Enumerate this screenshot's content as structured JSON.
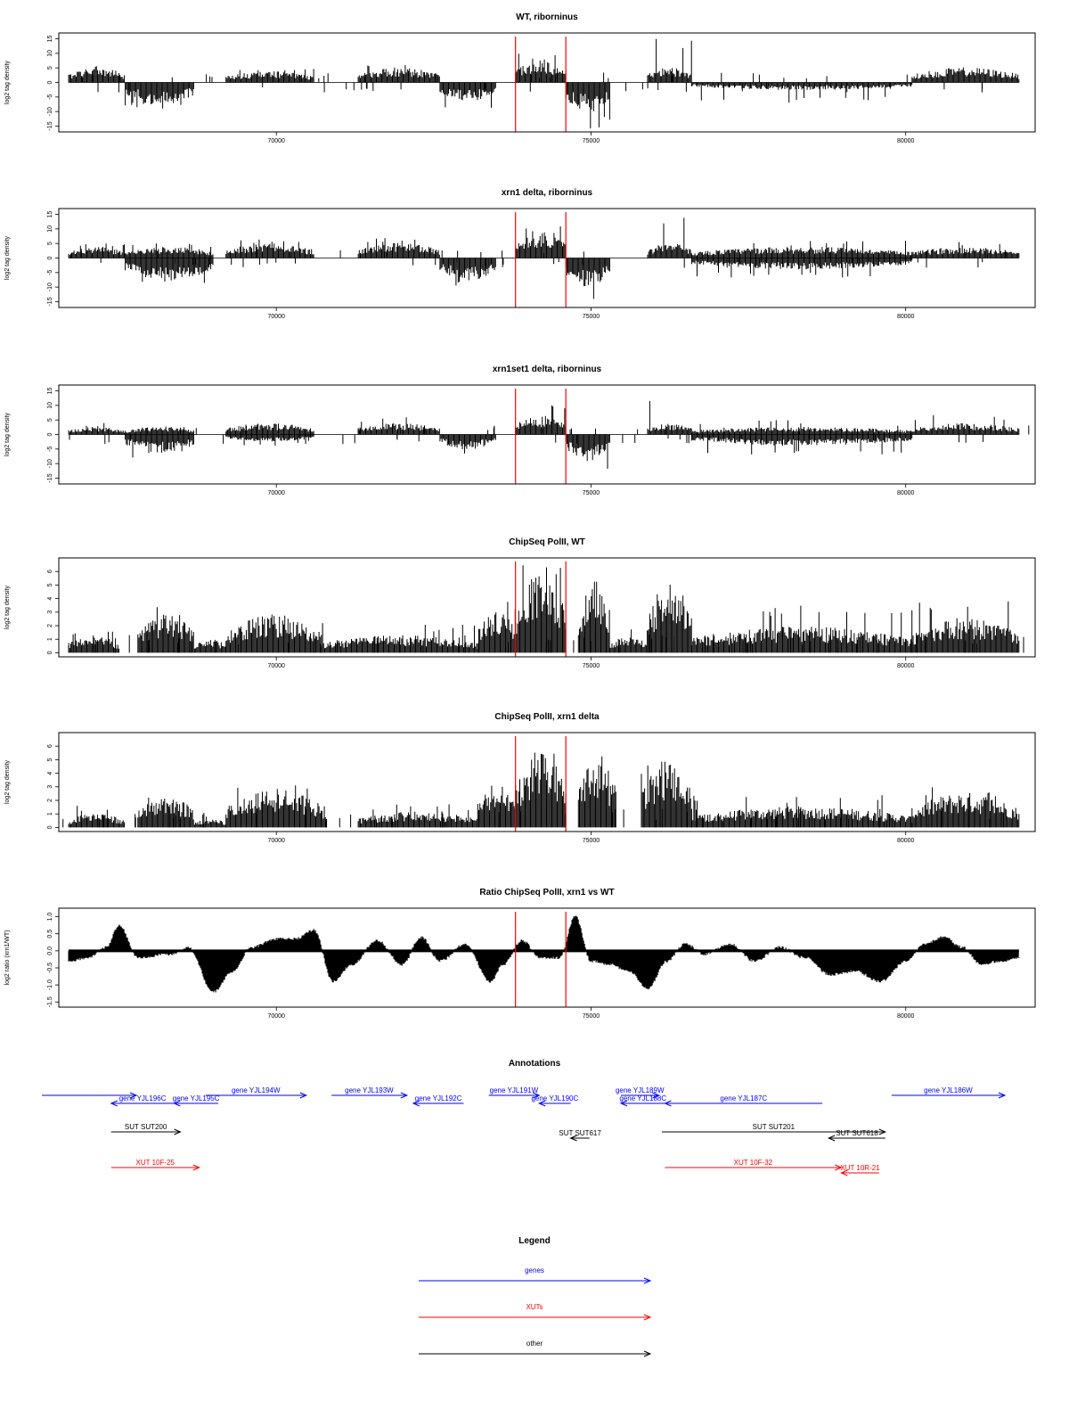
{
  "chart_data": [
    {
      "type": "bar",
      "title": "WT, riborninus",
      "ylabel": "log2 tag density",
      "x_ticks": [
        70000,
        75000,
        80000
      ],
      "y_ticks": [
        -15,
        -10,
        -5,
        0,
        5,
        10,
        15
      ],
      "y_tick_labels": [
        "-15",
        "-10",
        "-5",
        "0",
        "5",
        "10",
        "15"
      ],
      "xlim": [
        66600,
        82000
      ],
      "ylim": [
        -17,
        17
      ],
      "red_lines_x": [
        73800,
        74600
      ],
      "segments": [
        {
          "x0": 66700,
          "x1": 67600,
          "amp": 4,
          "hi": 6
        },
        {
          "x0": 67600,
          "x1": 68700,
          "amp": -6,
          "hi": -9
        },
        {
          "x0": 69200,
          "x1": 70600,
          "amp": 3,
          "hi": 5
        },
        {
          "x0": 71300,
          "x1": 72600,
          "amp": 4,
          "hi": 7
        },
        {
          "x0": 72600,
          "x1": 73500,
          "amp": -5,
          "hi": -9
        },
        {
          "x0": 73800,
          "x1": 74600,
          "amp": 6,
          "hi": 11
        },
        {
          "x0": 74600,
          "x1": 75300,
          "amp": -8,
          "hi": -16
        },
        {
          "x0": 75900,
          "x1": 76600,
          "amp": 4,
          "hi": 15
        },
        {
          "x0": 76600,
          "x1": 80100,
          "amp": -2,
          "hi": -7
        },
        {
          "x0": 80100,
          "x1": 81800,
          "amp": 4,
          "hi": 7
        }
      ]
    },
    {
      "type": "bar",
      "title": "xrn1 delta, riborninus",
      "ylabel": "log2 tag density",
      "x_ticks": [
        70000,
        75000,
        80000
      ],
      "y_ticks": [
        -15,
        -10,
        -5,
        0,
        5,
        10,
        15
      ],
      "y_tick_labels": [
        "-15",
        "-10",
        "-5",
        "0",
        "5",
        "10",
        "15"
      ],
      "xlim": [
        66600,
        82000
      ],
      "ylim": [
        -17,
        17
      ],
      "red_lines_x": [
        73800,
        74600
      ],
      "segments": [
        {
          "x0": 66700,
          "x1": 67600,
          "amp": 3,
          "hi": 5
        },
        {
          "x0": 67600,
          "x1": 69000,
          "amp": -6,
          "hi": -9
        },
        {
          "x0": 67600,
          "x1": 69000,
          "amp": 3,
          "hi": 5
        },
        {
          "x0": 69200,
          "x1": 70600,
          "amp": 4,
          "hi": 7
        },
        {
          "x0": 71300,
          "x1": 72600,
          "amp": 4,
          "hi": 7
        },
        {
          "x0": 72600,
          "x1": 73500,
          "amp": -6,
          "hi": -10
        },
        {
          "x0": 73800,
          "x1": 74600,
          "amp": 7,
          "hi": 11
        },
        {
          "x0": 74600,
          "x1": 75300,
          "amp": -8,
          "hi": -16
        },
        {
          "x0": 75900,
          "x1": 76600,
          "amp": 4,
          "hi": 15
        },
        {
          "x0": 76600,
          "x1": 80100,
          "amp": 3,
          "hi": 6
        },
        {
          "x0": 76600,
          "x1": 80100,
          "amp": -3,
          "hi": -7
        },
        {
          "x0": 80100,
          "x1": 81800,
          "amp": 3,
          "hi": 6
        }
      ]
    },
    {
      "type": "bar",
      "title": "xrn1set1 delta, riborninus",
      "ylabel": "log2 tag density",
      "x_ticks": [
        70000,
        75000,
        80000
      ],
      "y_ticks": [
        -15,
        -10,
        -5,
        0,
        5,
        10,
        15
      ],
      "y_tick_labels": [
        "-15",
        "-10",
        "-5",
        "0",
        "5",
        "10",
        "15"
      ],
      "xlim": [
        66600,
        82000
      ],
      "ylim": [
        -17,
        17
      ],
      "red_lines_x": [
        73800,
        74600
      ],
      "segments": [
        {
          "x0": 66700,
          "x1": 67600,
          "amp": 2,
          "hi": 5
        },
        {
          "x0": 67600,
          "x1": 68700,
          "amp": -5,
          "hi": -8
        },
        {
          "x0": 67600,
          "x1": 68700,
          "amp": 2,
          "hi": 3
        },
        {
          "x0": 69200,
          "x1": 70600,
          "amp": 3,
          "hi": 7
        },
        {
          "x0": 69200,
          "x1": 70600,
          "amp": -2,
          "hi": -4
        },
        {
          "x0": 71300,
          "x1": 72600,
          "amp": 3,
          "hi": 6
        },
        {
          "x0": 72600,
          "x1": 73500,
          "amp": -4,
          "hi": -9
        },
        {
          "x0": 73800,
          "x1": 74600,
          "amp": 5,
          "hi": 11
        },
        {
          "x0": 74600,
          "x1": 75300,
          "amp": -7,
          "hi": -13
        },
        {
          "x0": 75900,
          "x1": 76600,
          "amp": 3,
          "hi": 12
        },
        {
          "x0": 76600,
          "x1": 80100,
          "amp": -3,
          "hi": -7
        },
        {
          "x0": 76600,
          "x1": 80100,
          "amp": 2,
          "hi": 5
        },
        {
          "x0": 80100,
          "x1": 81800,
          "amp": 3,
          "hi": 7
        }
      ]
    },
    {
      "type": "bar",
      "title": "ChipSeq PolII, WT",
      "ylabel": "log2 tag density",
      "x_ticks": [
        70000,
        75000,
        80000
      ],
      "y_ticks": [
        0,
        1,
        2,
        3,
        4,
        5,
        6
      ],
      "y_tick_labels": [
        "0",
        "1",
        "2",
        "3",
        "4",
        "5",
        "6"
      ],
      "xlim": [
        66600,
        82000
      ],
      "ylim": [
        -0.3,
        7
      ],
      "red_lines_x": [
        73800,
        74600
      ],
      "segments": [
        {
          "x0": 66700,
          "x1": 67500,
          "amp": 1,
          "hi": 2
        },
        {
          "x0": 67800,
          "x1": 68700,
          "amp": 2.2,
          "hi": 3.5
        },
        {
          "x0": 68700,
          "x1": 69200,
          "amp": 0.8,
          "hi": 1.5
        },
        {
          "x0": 69200,
          "x1": 70700,
          "amp": 2.2,
          "hi": 3.6
        },
        {
          "x0": 70700,
          "x1": 73200,
          "amp": 1,
          "hi": 2.2
        },
        {
          "x0": 73200,
          "x1": 73800,
          "amp": 2.5,
          "hi": 4
        },
        {
          "x0": 73800,
          "x1": 74600,
          "amp": 4.5,
          "hi": 6.5
        },
        {
          "x0": 74800,
          "x1": 75300,
          "amp": 4.5,
          "hi": 6
        },
        {
          "x0": 75300,
          "x1": 75900,
          "amp": 1,
          "hi": 1.8
        },
        {
          "x0": 75900,
          "x1": 76600,
          "amp": 4,
          "hi": 6
        },
        {
          "x0": 76600,
          "x1": 80100,
          "amp": 1.5,
          "hi": 3.5
        },
        {
          "x0": 80100,
          "x1": 81800,
          "amp": 2,
          "hi": 4
        }
      ]
    },
    {
      "type": "bar",
      "title": "ChipSeq PolII, xrn1 delta",
      "ylabel": "log2 tag density",
      "x_ticks": [
        70000,
        75000,
        80000
      ],
      "y_ticks": [
        0,
        1,
        2,
        3,
        4,
        5,
        6
      ],
      "y_tick_labels": [
        "0",
        "1",
        "2",
        "3",
        "4",
        "5",
        "6"
      ],
      "xlim": [
        66600,
        82000
      ],
      "ylim": [
        -0.3,
        7
      ],
      "red_lines_x": [
        73800,
        74600
      ],
      "segments": [
        {
          "x0": 66700,
          "x1": 67600,
          "amp": 0.8,
          "hi": 2
        },
        {
          "x0": 67800,
          "x1": 68700,
          "amp": 1.8,
          "hi": 2.6
        },
        {
          "x0": 68700,
          "x1": 69200,
          "amp": 0.5,
          "hi": 1
        },
        {
          "x0": 69200,
          "x1": 70800,
          "amp": 2.2,
          "hi": 3.1
        },
        {
          "x0": 71300,
          "x1": 73200,
          "amp": 0.9,
          "hi": 1.8
        },
        {
          "x0": 73200,
          "x1": 73800,
          "amp": 2.5,
          "hi": 4
        },
        {
          "x0": 73800,
          "x1": 74600,
          "amp": 4.5,
          "hi": 6.2
        },
        {
          "x0": 74800,
          "x1": 75400,
          "amp": 4,
          "hi": 5.3
        },
        {
          "x0": 75800,
          "x1": 76600,
          "amp": 3.8,
          "hi": 5.3
        },
        {
          "x0": 76600,
          "x1": 80100,
          "amp": 1.2,
          "hi": 2.5
        },
        {
          "x0": 80100,
          "x1": 81800,
          "amp": 2,
          "hi": 3
        }
      ]
    },
    {
      "type": "area",
      "title": "Ratio ChipSeq PolII, xrn1 vs WT",
      "ylabel": "log2 ratio (xrn1/WT)",
      "x_ticks": [
        70000,
        75000,
        80000
      ],
      "y_ticks": [
        -1.5,
        -1.0,
        -0.5,
        0.0,
        0.5,
        1.0
      ],
      "y_tick_labels": [
        "-1.5",
        "-1.0",
        "-0.5",
        "0.0",
        "0.5",
        "1.0"
      ],
      "xlim": [
        66600,
        82000
      ],
      "ylim": [
        -1.65,
        1.25
      ],
      "red_lines_x": [
        73800,
        74600
      ],
      "x": [
        66700,
        67000,
        67300,
        67500,
        67800,
        68300,
        68600,
        69000,
        69300,
        69600,
        70000,
        70300,
        70600,
        70900,
        71200,
        71600,
        72000,
        72300,
        72600,
        73000,
        73400,
        73600,
        73900,
        74200,
        74500,
        74750,
        75000,
        75300,
        75600,
        75900,
        76200,
        76500,
        76800,
        77200,
        77600,
        78000,
        78400,
        78800,
        79200,
        79600,
        80000,
        80300,
        80600,
        80900,
        81200,
        81500,
        81800
      ],
      "values": [
        -0.3,
        -0.2,
        0.1,
        0.75,
        -0.2,
        -0.1,
        0.1,
        -1.2,
        -0.6,
        0.1,
        0.35,
        0.35,
        0.6,
        -0.9,
        -0.4,
        0.3,
        -0.4,
        0.4,
        -0.3,
        0.2,
        -0.9,
        -0.4,
        0.3,
        -0.2,
        -0.2,
        1.0,
        -0.3,
        -0.4,
        -0.6,
        -1.1,
        -0.3,
        0.2,
        -0.1,
        0.2,
        -0.3,
        0.1,
        -0.2,
        -0.7,
        -0.6,
        -0.9,
        -0.3,
        0.2,
        0.4,
        0.1,
        -0.4,
        -0.3,
        -0.2
      ]
    }
  ],
  "annotations": {
    "title": "Annotations",
    "xlim": [
      66600,
      82000
    ],
    "items": [
      {
        "label": "",
        "x_start": 66700,
        "x_end": 68200,
        "dir": "right",
        "color": "#0000ff",
        "row": 0
      },
      {
        "label": "gene YJL196C",
        "x_start": 67800,
        "x_end": 68800,
        "dir": "left",
        "color": "#0000ff",
        "row": 1
      },
      {
        "label": "gene YJL195C",
        "x_start": 68800,
        "x_end": 69500,
        "dir": "left",
        "color": "#0000ff",
        "row": 1
      },
      {
        "label": "gene YJL194W",
        "x_start": 69300,
        "x_end": 70900,
        "dir": "right",
        "color": "#0000ff",
        "row": 0
      },
      {
        "label": "gene YJL193W",
        "x_start": 71300,
        "x_end": 72500,
        "dir": "right",
        "color": "#0000ff",
        "row": 0
      },
      {
        "label": "gene YJL192C",
        "x_start": 72600,
        "x_end": 73400,
        "dir": "left",
        "color": "#0000ff",
        "row": 1
      },
      {
        "label": "gene YJL191W",
        "x_start": 73800,
        "x_end": 74600,
        "dir": "right",
        "color": "#0000ff",
        "row": 0
      },
      {
        "label": "gene YJL190C",
        "x_start": 74600,
        "x_end": 75100,
        "dir": "left",
        "color": "#0000ff",
        "row": 1
      },
      {
        "label": "gene YJL189W",
        "x_start": 75900,
        "x_end": 76500,
        "dir": "right",
        "color": "#0000ff",
        "row": 0
      },
      {
        "label": "gene YJL188C",
        "x_start": 75900,
        "x_end": 76600,
        "dir": "left",
        "color": "#0000ff",
        "row": 1
      },
      {
        "label": "gene YJL187C",
        "x_start": 76600,
        "x_end": 79100,
        "dir": "left",
        "color": "#0000ff",
        "row": 1
      },
      {
        "label": "gene YJL186W",
        "x_start": 80200,
        "x_end": 82000,
        "dir": "right",
        "color": "#0000ff",
        "row": 0
      },
      {
        "label": "SUT SUT200",
        "x_start": 67800,
        "x_end": 68900,
        "dir": "right",
        "color": "#000000",
        "row": 2
      },
      {
        "label": "SUT SUT617",
        "x_start": 75100,
        "x_end": 75400,
        "dir": "left",
        "color": "#000000",
        "row": 3
      },
      {
        "label": "SUT SUT201",
        "x_start": 76550,
        "x_end": 80100,
        "dir": "right",
        "color": "#000000",
        "row": 2
      },
      {
        "label": "SUT SUT618",
        "x_start": 79200,
        "x_end": 80100,
        "dir": "left",
        "color": "#000000",
        "row": 3
      },
      {
        "label": "XUT 10F-25",
        "x_start": 67800,
        "x_end": 69200,
        "dir": "right",
        "color": "#ff0000",
        "row": 4
      },
      {
        "label": "XUT 10F-32",
        "x_start": 76600,
        "x_end": 79400,
        "dir": "right",
        "color": "#ff0000",
        "row": 4
      },
      {
        "label": "XUT 10R-21",
        "x_start": 79400,
        "x_end": 80000,
        "dir": "left",
        "color": "#ff0000",
        "row": 5
      }
    ]
  },
  "legend": {
    "title": "Legend",
    "entries": [
      {
        "label": "genes",
        "color": "#0000ff"
      },
      {
        "label": "XUTs",
        "color": "#ff0000"
      },
      {
        "label": "other",
        "color": "#000000"
      }
    ]
  }
}
